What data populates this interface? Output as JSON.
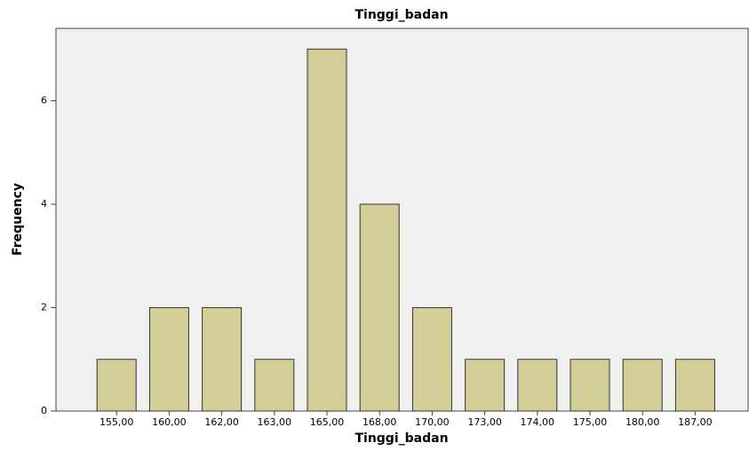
{
  "chart_data": {
    "type": "bar",
    "title": "Tinggi_badan",
    "x_label": "Tinggi_badan",
    "y_label": "Frequency",
    "categories": [
      "155,00",
      "160,00",
      "162,00",
      "163,00",
      "165,00",
      "168,00",
      "170,00",
      "173,00",
      "174,00",
      "175,00",
      "180,00",
      "187,00"
    ],
    "values": [
      1,
      2,
      2,
      1,
      7,
      4,
      2,
      1,
      1,
      1,
      1,
      1
    ],
    "color": "#d3ce97",
    "ylim": [
      0,
      7.4
    ],
    "yticks": [
      0,
      2,
      4,
      6
    ],
    "grid": false
  }
}
